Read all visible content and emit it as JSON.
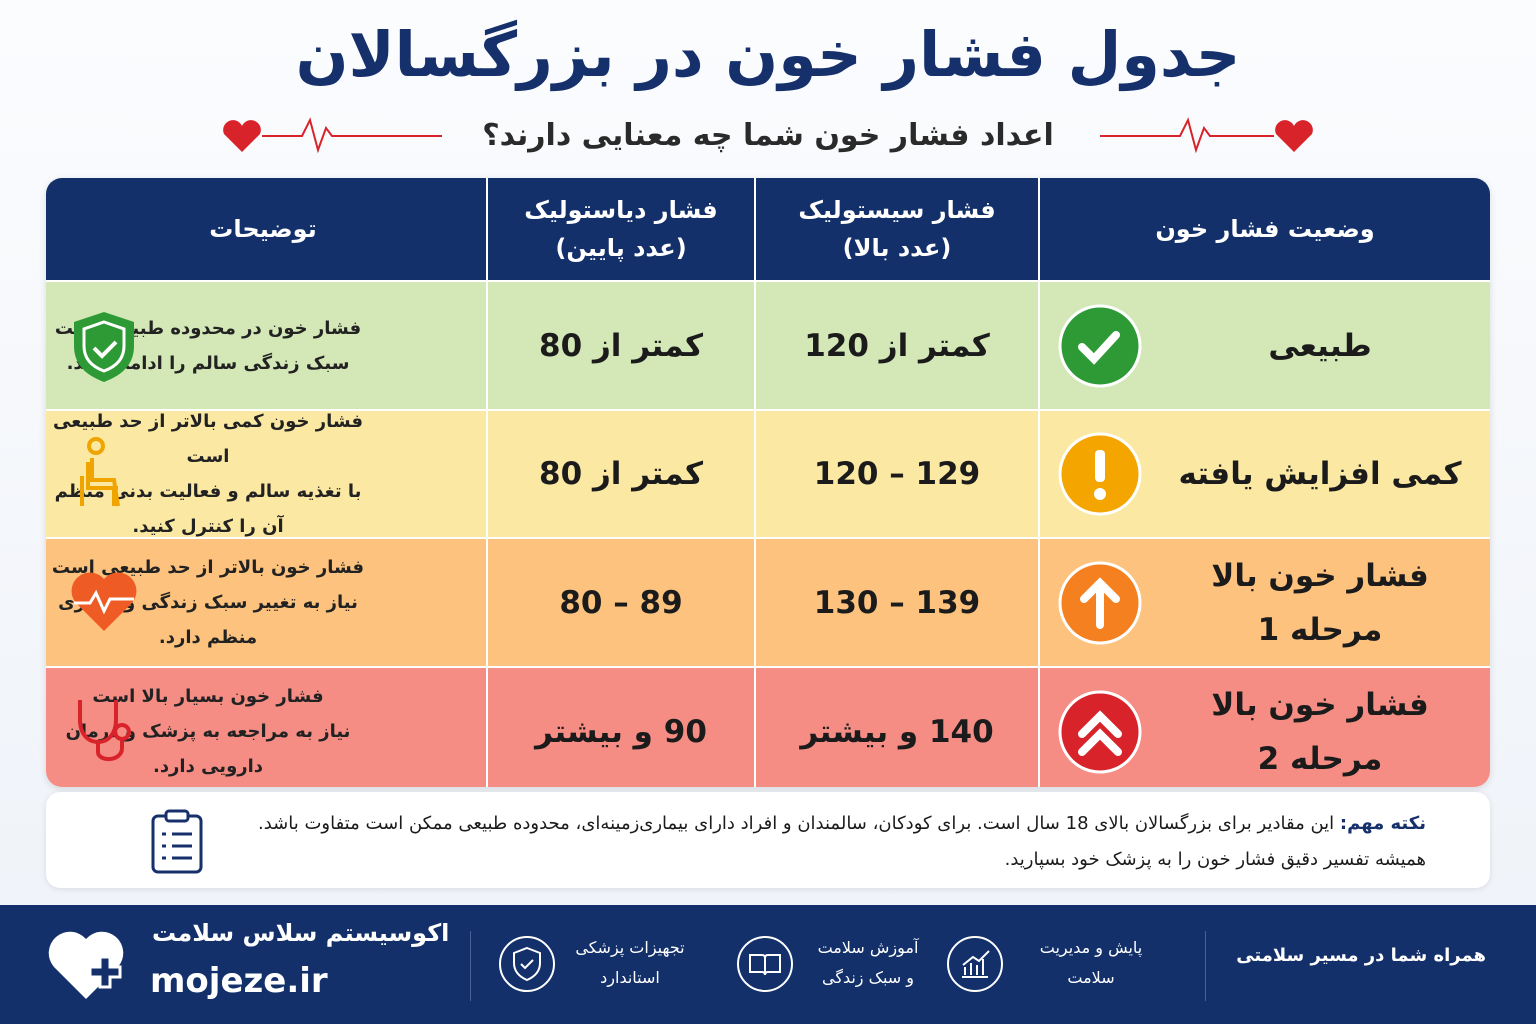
{
  "header": {
    "title": "جدول فشار خون در بزرگسالان",
    "subtitle": "اعداد فشار خون شما چه معنایی دارند؟"
  },
  "table": {
    "columns": [
      [
        "وضعیت فشار خون"
      ],
      [
        "فشار سیستولیک",
        "(عدد بالا)"
      ],
      [
        "فشار دیاستولیک",
        "(عدد پایین)"
      ],
      [
        "توضیحات"
      ]
    ],
    "rows": [
      {
        "status": [
          "طبیعی"
        ],
        "systolic": "کمتر از 120",
        "diastolic": "کمتر از 80",
        "description": [
          "فشار خون در محدوده طبیعی است",
          "سبک زندگی سالم را ادامه دهید."
        ]
      },
      {
        "status": [
          "کمی افزایش یافته"
        ],
        "systolic": "120 – 129",
        "diastolic": "کمتر از 80",
        "description": [
          "فشار خون کمی بالاتر از حد طبیعی است",
          "با تغذیه سالم و فعالیت بدنی منظم",
          "آن را کنترل کنید."
        ]
      },
      {
        "status": [
          "فشار خون بالا",
          "مرحله 1"
        ],
        "systolic": "130 – 139",
        "diastolic": "80 – 89",
        "description": [
          "فشار خون بالاتر از حد طبیعی است",
          "نیاز به تغییر سبک زندگی و پیگیری",
          "منظم دارد."
        ]
      },
      {
        "status": [
          "فشار خون بالا",
          "مرحله 2"
        ],
        "systolic": "140 و بیشتر",
        "diastolic": "90 و بیشتر",
        "description": [
          "فشار خون بسیار بالا است",
          "نیاز به مراجعه به پزشک و درمان",
          "دارویی دارد."
        ]
      }
    ]
  },
  "note": {
    "label": "نکته مهم:",
    "lines": [
      "این مقادیر برای بزرگسالان بالای 18 سال است. برای کودکان، سالمندان و افراد دارای بیماری‌زمینه‌ای، محدوده طبیعی ممکن است متفاوت باشد.",
      "همیشه تفسیر دقیق فشار خون را به پزشک خود بسپارید."
    ]
  },
  "footer": {
    "tagline": "همراه شما در مسیر سلامتی",
    "features": [
      [
        "پایش و مدیریت",
        "سلامت"
      ],
      [
        "آموزش سلامت",
        "و سبک زندگی"
      ],
      [
        "تجهیزات پزشکی",
        "استاندارد"
      ]
    ],
    "brand": "اکوسیستم سلاس سلامت",
    "site": "mojeze.ir"
  }
}
